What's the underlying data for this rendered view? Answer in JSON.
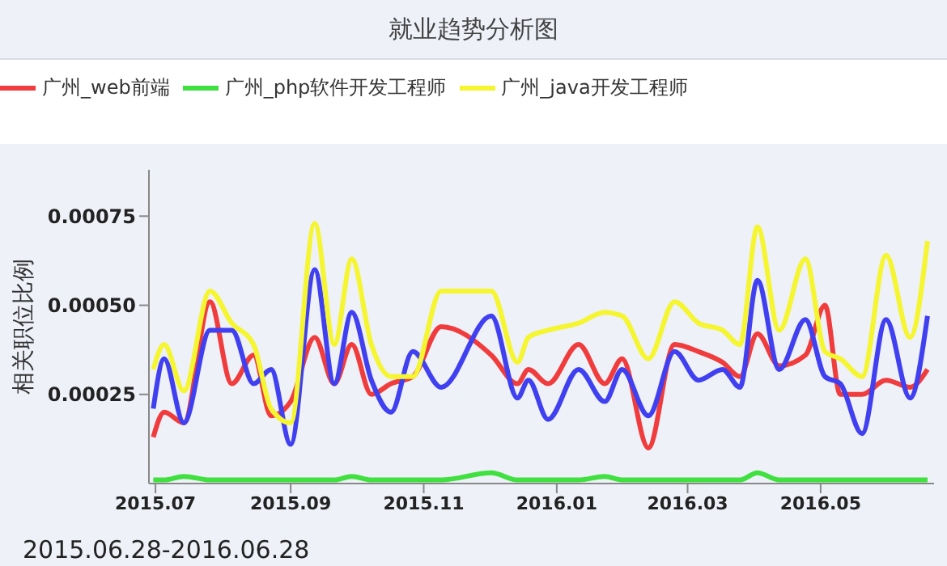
{
  "chart_data": {
    "type": "line",
    "title": "就业趋势分析图",
    "xlabel": "2015.06.28-2016.06.28",
    "ylabel": "相关职位比例",
    "legend": "top",
    "grid": false,
    "marker": "none",
    "line_style": "solid",
    "x": [
      "2015-06-30",
      "2015-07-05",
      "2015-07-14",
      "2015-07-26",
      "2015-08-05",
      "2015-08-15",
      "2015-08-23",
      "2015-09-01",
      "2015-09-12",
      "2015-09-21",
      "2015-09-29",
      "2015-10-08",
      "2015-10-17",
      "2015-10-27",
      "2015-11-09",
      "2015-12-02",
      "2015-12-14",
      "2015-12-19",
      "2015-12-28",
      "2016-01-11",
      "2016-01-23",
      "2016-01-31",
      "2016-02-12",
      "2016-02-24",
      "2016-03-06",
      "2016-03-17",
      "2016-03-25",
      "2016-04-02",
      "2016-04-12",
      "2016-04-24",
      "2016-05-03",
      "2016-05-10",
      "2016-05-20",
      "2016-05-31",
      "2016-06-11",
      "2016-06-19"
    ],
    "xlim": [
      "2015-06-28",
      "2016-06-22"
    ],
    "xticks": [
      {
        "value": "2015-07-01",
        "label": "2015.07"
      },
      {
        "value": "2015-09-01",
        "label": "2015.09"
      },
      {
        "value": "2015-11-01",
        "label": "2015.11"
      },
      {
        "value": "2016-01-01",
        "label": "2016.01"
      },
      {
        "value": "2016-03-01",
        "label": "2016.03"
      },
      {
        "value": "2016-05-01",
        "label": "2016.05"
      }
    ],
    "ylim": [
      0,
      0.00088
    ],
    "yticks": [
      0.00025,
      {
        "value": 0.0005,
        "label": "0.00050"
      },
      0.00075
    ],
    "series": [
      {
        "name": "广州_web前端",
        "color": "#f03c3c",
        "values": [
          0.00013,
          0.0002,
          0.00017,
          0.00051,
          0.00028,
          0.00036,
          0.00019,
          0.00023,
          0.00041,
          0.00028,
          0.00039,
          0.00025,
          0.00028,
          0.0003,
          0.00044,
          0.00036,
          0.00028,
          0.00032,
          0.00028,
          0.00039,
          0.00028,
          0.00035,
          0.0001,
          0.00039,
          0.00037,
          0.00034,
          0.0003,
          0.00042,
          0.00033,
          0.00036,
          0.0005,
          0.00025,
          0.00025,
          0.00029,
          0.00027,
          0.00032
        ]
      },
      {
        "color": "#4040f0",
        "values": [
          0.00021,
          0.00035,
          0.00017,
          0.00043,
          0.00043,
          0.00028,
          0.00032,
          0.00011,
          0.0006,
          0.00028,
          0.00048,
          0.00029,
          0.0002,
          0.00037,
          0.00027,
          0.00047,
          0.00024,
          0.00029,
          0.00018,
          0.00032,
          0.00023,
          0.00032,
          0.00019,
          0.00037,
          0.00029,
          0.00032,
          0.00027,
          0.00057,
          0.00032,
          0.00046,
          0.0003,
          0.00028,
          0.00014,
          0.00046,
          0.00024,
          0.00047
        ]
      },
      {
        "name": "广州_php软件开发工程师",
        "color": "#40e040",
        "values": [
          1e-05,
          1e-05,
          2e-05,
          1e-05,
          1e-05,
          1e-05,
          1e-05,
          1e-05,
          1e-05,
          1e-05,
          2e-05,
          1e-05,
          1e-05,
          1e-05,
          1e-05,
          3e-05,
          1e-05,
          1e-05,
          1e-05,
          1e-05,
          2e-05,
          1e-05,
          1e-05,
          1e-05,
          1e-05,
          1e-05,
          1e-05,
          3e-05,
          1e-05,
          1e-05,
          1e-05,
          1e-05,
          1e-05,
          1e-05,
          1e-05,
          1e-05
        ]
      },
      {
        "name": "广州_java开发工程师",
        "color": "#f5f530",
        "values": [
          0.00032,
          0.00039,
          0.00026,
          0.00054,
          0.00045,
          0.00039,
          0.00021,
          0.00017,
          0.00073,
          0.00039,
          0.00063,
          0.00039,
          0.0003,
          0.0003,
          0.00054,
          0.00054,
          0.00034,
          0.00041,
          0.00043,
          0.00045,
          0.00048,
          0.00047,
          0.00035,
          0.00051,
          0.00045,
          0.00043,
          0.00039,
          0.00072,
          0.00043,
          0.00063,
          0.00037,
          0.00035,
          0.0003,
          0.00064,
          0.00041,
          0.00068
        ]
      }
    ]
  }
}
